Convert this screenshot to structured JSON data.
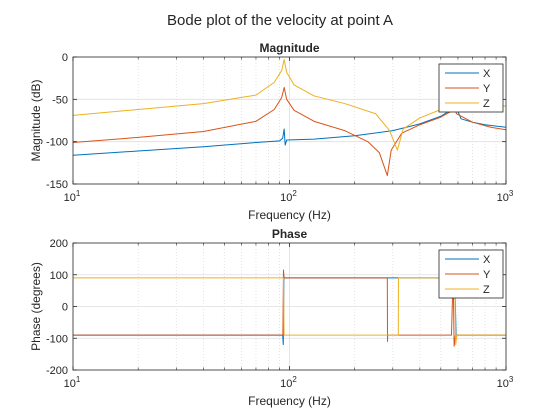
{
  "figure": {
    "title": "Bode plot of the velocity at point A"
  },
  "chart_data": [
    {
      "type": "line",
      "title": "Magnitude",
      "xlabel": "Frequency (Hz)",
      "ylabel": "Magnitude (dB)",
      "xscale": "log",
      "xlim": [
        10,
        1000
      ],
      "ylim": [
        -150,
        0
      ],
      "yticks": [
        0,
        -50,
        -100,
        -150
      ],
      "xtick_labels": [
        {
          "base": "10",
          "exp": "1"
        },
        {
          "base": "10",
          "exp": "2"
        },
        {
          "base": "10",
          "exp": "3"
        }
      ],
      "grid": true,
      "minor_grid_x": true,
      "legend": "top-right",
      "series": [
        {
          "name": "X",
          "color": "#0072BD",
          "points": [
            [
              10,
              -116
            ],
            [
              20,
              -111
            ],
            [
              40,
              -106
            ],
            [
              70,
              -101
            ],
            [
              90,
              -99
            ],
            [
              93,
              -96
            ],
            [
              94.5,
              -85
            ],
            [
              95.5,
              -104
            ],
            [
              97,
              -98
            ],
            [
              130,
              -97
            ],
            [
              200,
              -93
            ],
            [
              300,
              -87
            ],
            [
              400,
              -79
            ],
            [
              500,
              -70
            ],
            [
              560,
              -62
            ],
            [
              575,
              -50
            ],
            [
              585,
              -58
            ],
            [
              620,
              -73
            ],
            [
              700,
              -77
            ],
            [
              800,
              -80
            ],
            [
              1000,
              -83
            ]
          ]
        },
        {
          "name": "Y",
          "color": "#D95319",
          "points": [
            [
              10,
              -101
            ],
            [
              20,
              -95
            ],
            [
              40,
              -88
            ],
            [
              70,
              -76
            ],
            [
              85,
              -62
            ],
            [
              92,
              -48
            ],
            [
              94.5,
              -36
            ],
            [
              97,
              -50
            ],
            [
              105,
              -63
            ],
            [
              130,
              -76
            ],
            [
              180,
              -87
            ],
            [
              230,
              -100
            ],
            [
              260,
              -113
            ],
            [
              283,
              -140
            ],
            [
              295,
              -110
            ],
            [
              330,
              -90
            ],
            [
              400,
              -80
            ],
            [
              500,
              -71
            ],
            [
              560,
              -64
            ],
            [
              575,
              -50
            ],
            [
              590,
              -67
            ],
            [
              700,
              -77
            ],
            [
              850,
              -83
            ],
            [
              1000,
              -86
            ]
          ]
        },
        {
          "name": "Z",
          "color": "#EDB120",
          "points": [
            [
              10,
              -69
            ],
            [
              20,
              -62
            ],
            [
              40,
              -55
            ],
            [
              70,
              -45
            ],
            [
              85,
              -30
            ],
            [
              92,
              -16
            ],
            [
              94.5,
              -3
            ],
            [
              97,
              -18
            ],
            [
              105,
              -33
            ],
            [
              130,
              -46
            ],
            [
              180,
              -55
            ],
            [
              250,
              -67
            ],
            [
              290,
              -87
            ],
            [
              315,
              -110
            ],
            [
              335,
              -85
            ],
            [
              400,
              -72
            ],
            [
              500,
              -62
            ],
            [
              560,
              -52
            ],
            [
              580,
              -46
            ],
            [
              600,
              -51
            ],
            [
              700,
              -54
            ],
            [
              850,
              -57
            ],
            [
              1000,
              -58
            ]
          ]
        }
      ]
    },
    {
      "type": "line",
      "title": "Phase",
      "xlabel": "Frequency (Hz)",
      "ylabel": "Phase (degrees)",
      "xscale": "log",
      "xlim": [
        10,
        1000
      ],
      "ylim": [
        -200,
        200
      ],
      "yticks": [
        200,
        100,
        0,
        -100,
        -200
      ],
      "xtick_labels": [
        {
          "base": "10",
          "exp": "1"
        },
        {
          "base": "10",
          "exp": "2"
        },
        {
          "base": "10",
          "exp": "3"
        }
      ],
      "grid": true,
      "minor_grid_x": true,
      "legend": "top-right",
      "series": [
        {
          "name": "X",
          "color": "#0072BD",
          "points": [
            [
              10,
              -90
            ],
            [
              93,
              -90
            ],
            [
              93.6,
              -120
            ],
            [
              94.2,
              90
            ],
            [
              580,
              90
            ],
            [
              588,
              -90
            ],
            [
              1000,
              -90
            ]
          ]
        },
        {
          "name": "Y",
          "color": "#D95319",
          "points": [
            [
              10,
              -90
            ],
            [
              93.2,
              -90
            ],
            [
              93.8,
              115
            ],
            [
              94.4,
              90
            ],
            [
              283,
              90
            ],
            [
              283.6,
              -110
            ],
            [
              284.2,
              -90
            ],
            [
              560,
              -90
            ],
            [
              570,
              105
            ],
            [
              576,
              -125
            ],
            [
              584,
              -90
            ],
            [
              1000,
              -90
            ]
          ]
        },
        {
          "name": "Z",
          "color": "#EDB120",
          "points": [
            [
              10,
              90
            ],
            [
              93.8,
              90
            ],
            [
              94.4,
              -90
            ],
            [
              318,
              -90
            ],
            [
              318.6,
              90
            ],
            [
              580,
              90
            ],
            [
              586,
              -120
            ],
            [
              592,
              -90
            ],
            [
              1000,
              -90
            ]
          ]
        }
      ]
    }
  ]
}
